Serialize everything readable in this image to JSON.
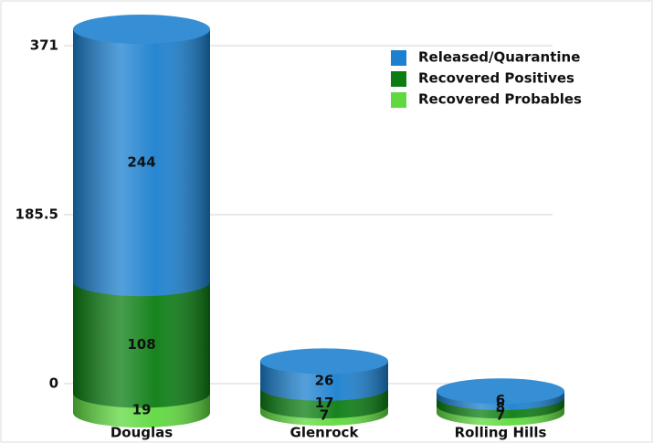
{
  "chart_data": {
    "type": "bar3d_stacked",
    "categories": [
      "Douglas",
      "Glenrock",
      "Rolling Hills"
    ],
    "series": [
      {
        "name": "Recovered Probables",
        "color": "#5fd93f",
        "values": [
          19,
          7,
          7
        ]
      },
      {
        "name": "Recovered Positives",
        "color": "#0b7d12",
        "values": [
          108,
          17,
          8
        ]
      },
      {
        "name": "Released/Quarantine",
        "color": "#1b80cf",
        "values": [
          244,
          26,
          6
        ]
      }
    ],
    "ylim": [
      0,
      371
    ],
    "yticks": [
      0,
      185.5,
      371
    ],
    "grid": true
  }
}
